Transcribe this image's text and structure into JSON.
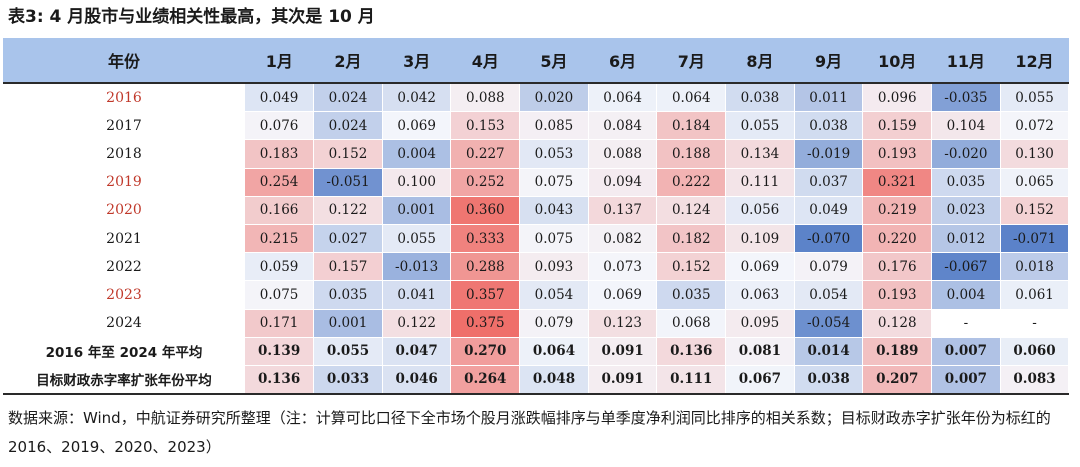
{
  "title": "表3: 4 月股市与业绩相关性最高，其次是 10 月",
  "header": {
    "year_col": "年份",
    "months": [
      "1月",
      "2月",
      "3月",
      "4月",
      "5月",
      "6月",
      "7月",
      "8月",
      "9月",
      "10月",
      "11月",
      "12月"
    ]
  },
  "rows": [
    {
      "label": "2016",
      "highlight": true,
      "values": [
        "0.049",
        "0.024",
        "0.042",
        "0.088",
        "0.020",
        "0.064",
        "0.064",
        "0.038",
        "0.011",
        "0.096",
        "-0.035",
        "0.055"
      ]
    },
    {
      "label": "2017",
      "highlight": false,
      "values": [
        "0.076",
        "0.024",
        "0.069",
        "0.153",
        "0.085",
        "0.084",
        "0.184",
        "0.055",
        "0.038",
        "0.159",
        "0.104",
        "0.072"
      ]
    },
    {
      "label": "2018",
      "highlight": false,
      "values": [
        "0.183",
        "0.152",
        "0.004",
        "0.227",
        "0.053",
        "0.088",
        "0.188",
        "0.134",
        "-0.019",
        "0.193",
        "-0.020",
        "0.130"
      ]
    },
    {
      "label": "2019",
      "highlight": true,
      "values": [
        "0.254",
        "-0.051",
        "0.100",
        "0.252",
        "0.075",
        "0.094",
        "0.222",
        "0.111",
        "0.037",
        "0.321",
        "0.035",
        "0.065"
      ]
    },
    {
      "label": "2020",
      "highlight": true,
      "values": [
        "0.166",
        "0.122",
        "0.001",
        "0.360",
        "0.043",
        "0.137",
        "0.124",
        "0.056",
        "0.049",
        "0.219",
        "0.023",
        "0.152"
      ]
    },
    {
      "label": "2021",
      "highlight": false,
      "values": [
        "0.215",
        "0.027",
        "0.055",
        "0.333",
        "0.075",
        "0.082",
        "0.182",
        "0.109",
        "-0.070",
        "0.220",
        "0.012",
        "-0.071"
      ]
    },
    {
      "label": "2022",
      "highlight": false,
      "values": [
        "0.059",
        "0.157",
        "-0.013",
        "0.288",
        "0.093",
        "0.073",
        "0.152",
        "0.069",
        "0.079",
        "0.176",
        "-0.067",
        "0.018"
      ]
    },
    {
      "label": "2023",
      "highlight": true,
      "values": [
        "0.075",
        "0.035",
        "0.041",
        "0.357",
        "0.054",
        "0.069",
        "0.035",
        "0.063",
        "0.054",
        "0.193",
        "0.004",
        "0.061"
      ]
    },
    {
      "label": "2024",
      "highlight": false,
      "values": [
        "0.171",
        "0.001",
        "0.122",
        "0.375",
        "0.079",
        "0.123",
        "0.068",
        "0.095",
        "-0.054",
        "0.128",
        "-",
        "-"
      ]
    },
    {
      "label": "2016 年至 2024 年平均",
      "highlight": false,
      "avg": true,
      "values": [
        "0.139",
        "0.055",
        "0.047",
        "0.270",
        "0.064",
        "0.091",
        "0.136",
        "0.081",
        "0.014",
        "0.189",
        "0.007",
        "0.060"
      ]
    },
    {
      "label": "目标财政赤字率扩张年份平均",
      "highlight": false,
      "avg": true,
      "values": [
        "0.136",
        "0.033",
        "0.046",
        "0.264",
        "0.048",
        "0.091",
        "0.111",
        "0.067",
        "0.038",
        "0.207",
        "0.007",
        "0.083"
      ]
    }
  ],
  "colors": {
    "header_bg": "#a9c4eb",
    "highlight_text": "#c0392b",
    "low": "#5b82c9",
    "mid": "#f4f6fb",
    "high": "#ef6f6a"
  },
  "note": "数据来源：Wind，中航证券研究所整理（注：计算可比口径下全市场个股月涨跌幅排序与单季度净利润同比排序的相关系数；目标财政赤字扩张年份为标红的 2016、2019、2020、2023）"
}
